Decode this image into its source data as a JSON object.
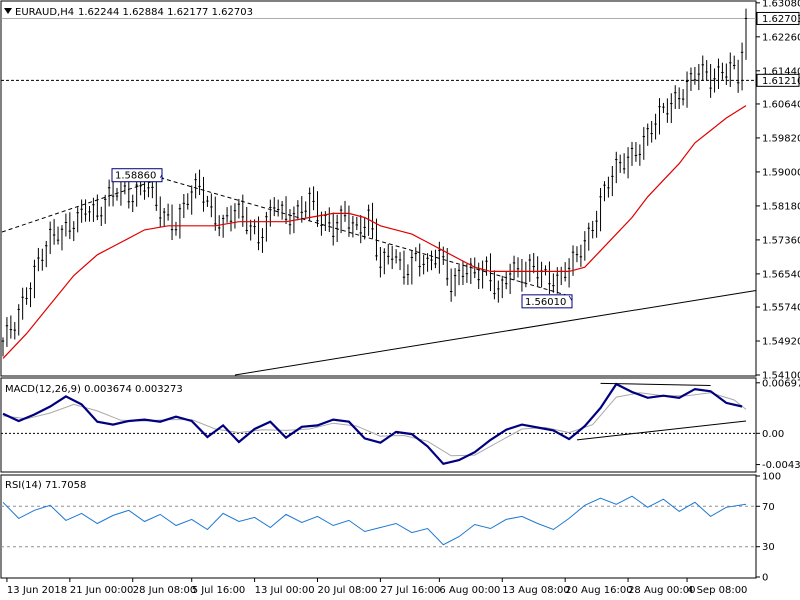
{
  "header": {
    "symbol_label": "EURAUD,H4",
    "ohlc": "1.62244 1.62884 1.62177 1.62703",
    "collapse_icon": "triangle-down-icon"
  },
  "colors": {
    "candle": "#000000",
    "ma": "#e00000",
    "macd": "#000080",
    "signal": "#a9a9a9",
    "rsi": "#1e78d2",
    "level_box": "#000080",
    "trendline": "#000000"
  },
  "chart_data": [
    {
      "type": "candlestick",
      "name": "price",
      "ylim": [
        1.541,
        1.631
      ],
      "x": [
        "13 Jun 2018",
        "21 Jun 00:00",
        "28 Jun 08:00",
        "5 Jul 16:00",
        "13 Jul 00:00",
        "20 Jul 08:00",
        "27 Jul 16:00",
        "6 Aug 00:00",
        "13 Aug 08:00",
        "20 Aug 16:00",
        "28 Aug 00:00",
        "4 Sep 08:00"
      ],
      "y_ticks": [
        "1.63080",
        "1.62260",
        "1.61440",
        "1.60640",
        "1.59820",
        "1.59000",
        "1.58180",
        "1.57360",
        "1.56540",
        "1.55740",
        "1.54920",
        "1.54100"
      ],
      "current_price_label": "1.62703",
      "horizontal_level_label": "1.61210",
      "annotations": [
        "1.58860",
        "1.56010"
      ],
      "close_path": [
        [
          0,
          1.548
        ],
        [
          3,
          1.553
        ],
        [
          6,
          1.562
        ],
        [
          9,
          1.569
        ],
        [
          12,
          1.573
        ],
        [
          15,
          1.575
        ],
        [
          18,
          1.579
        ],
        [
          21,
          1.582
        ],
        [
          24,
          1.578
        ],
        [
          27,
          1.584
        ],
        [
          30,
          1.588
        ],
        [
          33,
          1.584
        ],
        [
          36,
          1.586
        ],
        [
          40,
          1.581
        ],
        [
          44,
          1.578
        ],
        [
          47,
          1.583
        ],
        [
          50,
          1.586
        ],
        [
          53,
          1.581
        ],
        [
          56,
          1.578
        ],
        [
          59,
          1.58
        ],
        [
          62,
          1.577
        ],
        [
          65,
          1.575
        ],
        [
          67,
          1.579
        ],
        [
          69,
          1.583
        ],
        [
          72,
          1.577
        ],
        [
          75,
          1.58
        ],
        [
          78,
          1.585
        ],
        [
          81,
          1.578
        ],
        [
          84,
          1.575
        ],
        [
          87,
          1.58
        ],
        [
          90,
          1.577
        ],
        [
          93,
          1.579
        ],
        [
          96,
          1.566
        ],
        [
          99,
          1.571
        ],
        [
          102,
          1.567
        ],
        [
          105,
          1.569
        ],
        [
          108,
          1.566
        ],
        [
          111,
          1.571
        ],
        [
          114,
          1.564
        ],
        [
          117,
          1.566
        ],
        [
          120,
          1.564
        ],
        [
          123,
          1.567
        ],
        [
          126,
          1.562
        ],
        [
          129,
          1.566
        ],
        [
          132,
          1.564
        ],
        [
          135,
          1.568
        ],
        [
          138,
          1.566
        ],
        [
          141,
          1.563
        ],
        [
          144,
          1.566
        ],
        [
          147,
          1.572
        ],
        [
          150,
          1.578
        ],
        [
          153,
          1.585
        ],
        [
          156,
          1.59
        ],
        [
          159,
          1.594
        ],
        [
          162,
          1.597
        ],
        [
          165,
          1.6
        ],
        [
          168,
          1.604
        ],
        [
          171,
          1.608
        ],
        [
          174,
          1.612
        ],
        [
          177,
          1.614
        ],
        [
          180,
          1.611
        ],
        [
          183,
          1.615
        ],
        [
          185,
          1.617
        ],
        [
          187,
          1.613
        ],
        [
          189,
          1.627
        ]
      ],
      "ma_path": [
        [
          0,
          1.545
        ],
        [
          6,
          1.551
        ],
        [
          12,
          1.558
        ],
        [
          18,
          1.565
        ],
        [
          24,
          1.57
        ],
        [
          30,
          1.573
        ],
        [
          36,
          1.576
        ],
        [
          42,
          1.577
        ],
        [
          48,
          1.577
        ],
        [
          54,
          1.577
        ],
        [
          60,
          1.578
        ],
        [
          66,
          1.578
        ],
        [
          72,
          1.578
        ],
        [
          78,
          1.579
        ],
        [
          84,
          1.58
        ],
        [
          88,
          1.58
        ],
        [
          92,
          1.579
        ],
        [
          96,
          1.577
        ],
        [
          100,
          1.576
        ],
        [
          104,
          1.575
        ],
        [
          108,
          1.573
        ],
        [
          112,
          1.571
        ],
        [
          116,
          1.569
        ],
        [
          120,
          1.567
        ],
        [
          124,
          1.566
        ],
        [
          128,
          1.566
        ],
        [
          132,
          1.566
        ],
        [
          136,
          1.566
        ],
        [
          140,
          1.566
        ],
        [
          144,
          1.566
        ],
        [
          148,
          1.567
        ],
        [
          152,
          1.571
        ],
        [
          156,
          1.575
        ],
        [
          160,
          1.579
        ],
        [
          164,
          1.584
        ],
        [
          168,
          1.588
        ],
        [
          172,
          1.592
        ],
        [
          176,
          1.597
        ],
        [
          180,
          1.6
        ],
        [
          184,
          1.603
        ],
        [
          189,
          1.606
        ]
      ],
      "descending_trendline": [
        [
          40,
          1.5886
        ],
        [
          144,
          1.5601
        ]
      ],
      "ascending_trendline": [
        [
          59,
          1.541
        ],
        [
          189,
          1.5614
        ]
      ]
    },
    {
      "type": "line",
      "name": "macd",
      "title": "MACD(12,26,9) 0.003674 0.003273",
      "ylim": [
        -0.0052,
        0.0075
      ],
      "y_ticks": [
        "0.006976",
        "0.00",
        "-0.00431"
      ],
      "zero_line": 0,
      "macd_path": [
        [
          0,
          0.0027
        ],
        [
          4,
          0.0017
        ],
        [
          8,
          0.0026
        ],
        [
          12,
          0.0037
        ],
        [
          16,
          0.0051
        ],
        [
          20,
          0.004
        ],
        [
          24,
          0.0016
        ],
        [
          28,
          0.0012
        ],
        [
          32,
          0.0017
        ],
        [
          36,
          0.0019
        ],
        [
          40,
          0.0016
        ],
        [
          44,
          0.0023
        ],
        [
          48,
          0.0017
        ],
        [
          52,
          -0.0005
        ],
        [
          56,
          0.0011
        ],
        [
          60,
          -0.0012
        ],
        [
          64,
          0.0006
        ],
        [
          68,
          0.0016
        ],
        [
          72,
          -0.0006
        ],
        [
          76,
          0.0009
        ],
        [
          80,
          0.0011
        ],
        [
          84,
          0.0019
        ],
        [
          88,
          0.0016
        ],
        [
          92,
          -0.0007
        ],
        [
          96,
          -0.0013
        ],
        [
          100,
          0.0002
        ],
        [
          104,
          -0.0001
        ],
        [
          108,
          -0.0018
        ],
        [
          112,
          -0.0042
        ],
        [
          116,
          -0.0037
        ],
        [
          120,
          -0.0026
        ],
        [
          124,
          -0.0009
        ],
        [
          128,
          0.0005
        ],
        [
          132,
          0.0012
        ],
        [
          136,
          0.0008
        ],
        [
          140,
          0.0004
        ],
        [
          144,
          -0.0008
        ],
        [
          148,
          0.001
        ],
        [
          152,
          0.0035
        ],
        [
          156,
          0.0068
        ],
        [
          160,
          0.0057
        ],
        [
          164,
          0.0049
        ],
        [
          168,
          0.0052
        ],
        [
          172,
          0.0049
        ],
        [
          176,
          0.0061
        ],
        [
          180,
          0.0058
        ],
        [
          184,
          0.0042
        ],
        [
          188,
          0.0037
        ]
      ],
      "signal_path": [
        [
          0,
          0.0024
        ],
        [
          6,
          0.002
        ],
        [
          12,
          0.0028
        ],
        [
          18,
          0.004
        ],
        [
          24,
          0.0031
        ],
        [
          30,
          0.0018
        ],
        [
          36,
          0.0017
        ],
        [
          42,
          0.0019
        ],
        [
          48,
          0.0019
        ],
        [
          54,
          0.0006
        ],
        [
          60,
          0.0001
        ],
        [
          66,
          0.0005
        ],
        [
          72,
          0.0004
        ],
        [
          78,
          0.0006
        ],
        [
          84,
          0.0014
        ],
        [
          90,
          0.001
        ],
        [
          96,
          -0.0004
        ],
        [
          102,
          -0.0003
        ],
        [
          108,
          -0.0011
        ],
        [
          114,
          -0.0031
        ],
        [
          120,
          -0.003
        ],
        [
          126,
          -0.0012
        ],
        [
          132,
          0.0006
        ],
        [
          138,
          0.0008
        ],
        [
          144,
          0.0001
        ],
        [
          150,
          0.0012
        ],
        [
          156,
          0.005
        ],
        [
          162,
          0.0056
        ],
        [
          168,
          0.0052
        ],
        [
          174,
          0.0052
        ],
        [
          180,
          0.0056
        ],
        [
          186,
          0.0046
        ],
        [
          189,
          0.0033
        ]
      ],
      "divergence_lines": [
        [
          [
            152,
            0.0069
          ],
          [
            180,
            0.0066
          ]
        ],
        [
          [
            146,
            -0.0009
          ],
          [
            189,
            0.0017
          ]
        ]
      ]
    },
    {
      "type": "line",
      "name": "rsi",
      "title": "RSI(14) 71.7058",
      "ylim": [
        0,
        100
      ],
      "y_ticks": [
        "100",
        "70",
        "30",
        "0"
      ],
      "levels": [
        70,
        30
      ],
      "rsi_path": [
        [
          0,
          74
        ],
        [
          4,
          58
        ],
        [
          8,
          66
        ],
        [
          12,
          71
        ],
        [
          16,
          56
        ],
        [
          20,
          63
        ],
        [
          24,
          53
        ],
        [
          28,
          61
        ],
        [
          32,
          66
        ],
        [
          36,
          55
        ],
        [
          40,
          62
        ],
        [
          44,
          51
        ],
        [
          48,
          57
        ],
        [
          52,
          47
        ],
        [
          56,
          63
        ],
        [
          60,
          55
        ],
        [
          64,
          59
        ],
        [
          68,
          49
        ],
        [
          72,
          62
        ],
        [
          76,
          54
        ],
        [
          80,
          60
        ],
        [
          84,
          51
        ],
        [
          88,
          56
        ],
        [
          92,
          45
        ],
        [
          96,
          49
        ],
        [
          100,
          53
        ],
        [
          104,
          44
        ],
        [
          108,
          48
        ],
        [
          112,
          32
        ],
        [
          116,
          40
        ],
        [
          120,
          52
        ],
        [
          124,
          48
        ],
        [
          128,
          57
        ],
        [
          132,
          60
        ],
        [
          136,
          53
        ],
        [
          140,
          47
        ],
        [
          144,
          58
        ],
        [
          148,
          71
        ],
        [
          152,
          78
        ],
        [
          156,
          72
        ],
        [
          160,
          80
        ],
        [
          164,
          69
        ],
        [
          168,
          77
        ],
        [
          172,
          65
        ],
        [
          176,
          74
        ],
        [
          180,
          60
        ],
        [
          184,
          69
        ],
        [
          189,
          72
        ]
      ]
    }
  ]
}
